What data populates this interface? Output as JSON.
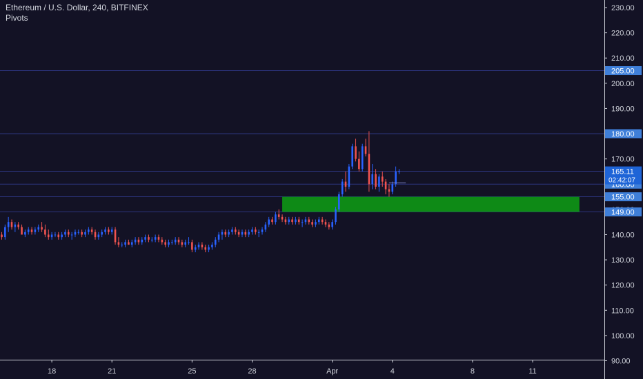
{
  "header": {
    "symbol_line": "Ethereum / U.S. Dollar, 240, BITFINEX",
    "indicator": "Pivots"
  },
  "colors": {
    "background": "#131225",
    "up": "#2962ff",
    "down": "#ef5350",
    "zone": "#0e8a16",
    "hline": "#2d3580",
    "price_tag": "#1e64d7",
    "level_tag": "#3f7fd9"
  },
  "chart_data": {
    "type": "candlestick",
    "symbol": "Ethereum / U.S. Dollar",
    "interval": "240",
    "exchange": "BITFINEX",
    "y_ticks": [
      90,
      100,
      110,
      120,
      130,
      140,
      150,
      160,
      170,
      180,
      190,
      200,
      210,
      220,
      230
    ],
    "y_tick_labels": [
      "90.00",
      "100.00",
      "110.00",
      "120.00",
      "130.00",
      "140.00",
      "150.00",
      "160.00",
      "170.00",
      "180.00",
      "190.00",
      "200.00",
      "210.00",
      "220.00",
      "230.00"
    ],
    "ylim": [
      87,
      233
    ],
    "x_ticks": [
      {
        "label": "18",
        "index": 15
      },
      {
        "label": "21",
        "index": 33
      },
      {
        "label": "25",
        "index": 57
      },
      {
        "label": "28",
        "index": 75
      },
      {
        "label": "Apr",
        "index": 99
      },
      {
        "label": "4",
        "index": 117
      },
      {
        "label": "8",
        "index": 141
      },
      {
        "label": "11",
        "index": 159
      }
    ],
    "horizontal_levels": [
      {
        "value": 205,
        "label": "205.00"
      },
      {
        "value": 180,
        "label": "180.00"
      },
      {
        "value": 165.11,
        "label": "165.11"
      },
      {
        "value": 160,
        "label": "160.00"
      },
      {
        "value": 155,
        "label": "155.00"
      },
      {
        "value": 149,
        "label": "149.00"
      }
    ],
    "current_price": {
      "value": 165.11,
      "label": "165.11",
      "countdown": "02:42:07"
    },
    "support_zone": {
      "from_index": 84,
      "to_index": 173,
      "low": 149,
      "high": 155
    },
    "candles": [
      [
        140,
        141,
        138,
        139
      ],
      [
        139,
        144,
        138,
        143
      ],
      [
        143,
        147,
        141,
        145
      ],
      [
        145,
        146,
        142,
        143
      ],
      [
        143,
        145,
        141,
        144
      ],
      [
        144,
        145,
        142,
        143
      ],
      [
        143,
        144,
        140,
        140
      ],
      [
        140,
        142,
        139,
        141
      ],
      [
        141,
        143,
        140,
        142
      ],
      [
        142,
        143,
        140,
        141
      ],
      [
        141,
        143,
        140,
        142
      ],
      [
        142,
        144,
        141,
        143
      ],
      [
        143,
        145,
        141,
        142
      ],
      [
        142,
        144,
        139,
        140
      ],
      [
        140,
        142,
        138,
        139
      ],
      [
        139,
        141,
        138,
        140
      ],
      [
        140,
        141,
        139,
        140
      ],
      [
        140,
        141,
        138,
        139
      ],
      [
        139,
        141,
        138,
        140
      ],
      [
        140,
        142,
        139,
        141
      ],
      [
        141,
        142,
        139,
        140
      ],
      [
        140,
        141,
        138,
        140
      ],
      [
        140,
        142,
        139,
        141
      ],
      [
        141,
        142,
        140,
        141
      ],
      [
        141,
        142,
        139,
        140
      ],
      [
        140,
        142,
        139,
        141
      ],
      [
        141,
        143,
        140,
        142
      ],
      [
        142,
        143,
        140,
        141
      ],
      [
        141,
        142,
        138,
        139
      ],
      [
        139,
        141,
        138,
        140
      ],
      [
        140,
        142,
        139,
        141
      ],
      [
        141,
        143,
        140,
        142
      ],
      [
        142,
        143,
        140,
        141
      ],
      [
        141,
        143,
        140,
        142
      ],
      [
        142,
        143,
        136,
        137
      ],
      [
        137,
        139,
        135,
        136
      ],
      [
        136,
        137,
        135,
        136
      ],
      [
        136,
        138,
        135,
        137
      ],
      [
        137,
        138,
        136,
        136
      ],
      [
        136,
        138,
        135,
        137
      ],
      [
        137,
        139,
        136,
        138
      ],
      [
        138,
        139,
        136,
        137
      ],
      [
        137,
        139,
        136,
        138
      ],
      [
        138,
        140,
        137,
        139
      ],
      [
        139,
        140,
        137,
        138
      ],
      [
        138,
        139,
        137,
        138
      ],
      [
        138,
        140,
        137,
        139
      ],
      [
        139,
        140,
        137,
        138
      ],
      [
        138,
        139,
        136,
        137
      ],
      [
        137,
        138,
        135,
        136
      ],
      [
        136,
        138,
        135,
        137
      ],
      [
        137,
        138,
        136,
        137
      ],
      [
        137,
        139,
        136,
        138
      ],
      [
        138,
        139,
        136,
        137
      ],
      [
        137,
        138,
        135,
        136
      ],
      [
        136,
        138,
        135,
        137
      ],
      [
        137,
        139,
        136,
        137
      ],
      [
        137,
        138,
        133,
        134
      ],
      [
        134,
        136,
        133,
        135
      ],
      [
        135,
        137,
        134,
        136
      ],
      [
        136,
        137,
        134,
        135
      ],
      [
        135,
        136,
        133,
        134
      ],
      [
        134,
        136,
        133,
        135
      ],
      [
        135,
        137,
        134,
        136
      ],
      [
        136,
        139,
        135,
        138
      ],
      [
        138,
        141,
        137,
        140
      ],
      [
        140,
        142,
        138,
        141
      ],
      [
        141,
        142,
        139,
        140
      ],
      [
        140,
        142,
        139,
        141
      ],
      [
        141,
        143,
        140,
        142
      ],
      [
        142,
        143,
        140,
        141
      ],
      [
        141,
        142,
        139,
        140
      ],
      [
        140,
        142,
        139,
        141
      ],
      [
        141,
        142,
        139,
        140
      ],
      [
        140,
        142,
        139,
        141
      ],
      [
        141,
        143,
        140,
        142
      ],
      [
        142,
        143,
        140,
        141
      ],
      [
        141,
        142,
        139,
        141
      ],
      [
        141,
        143,
        140,
        142
      ],
      [
        142,
        145,
        141,
        144
      ],
      [
        144,
        147,
        143,
        146
      ],
      [
        146,
        147,
        144,
        145
      ],
      [
        145,
        149,
        144,
        148
      ],
      [
        148,
        150,
        146,
        147
      ],
      [
        147,
        148,
        145,
        146
      ],
      [
        146,
        147,
        144,
        145
      ],
      [
        145,
        147,
        144,
        146
      ],
      [
        146,
        147,
        144,
        145
      ],
      [
        145,
        147,
        144,
        146
      ],
      [
        146,
        147,
        144,
        145
      ],
      [
        145,
        146,
        143,
        145
      ],
      [
        145,
        147,
        144,
        146
      ],
      [
        146,
        147,
        144,
        145
      ],
      [
        145,
        146,
        143,
        144
      ],
      [
        144,
        146,
        143,
        145
      ],
      [
        145,
        147,
        144,
        146
      ],
      [
        146,
        147,
        144,
        145
      ],
      [
        145,
        146,
        143,
        144
      ],
      [
        144,
        145,
        142,
        143
      ],
      [
        143,
        146,
        142,
        145
      ],
      [
        145,
        151,
        144,
        150
      ],
      [
        150,
        157,
        149,
        156
      ],
      [
        156,
        162,
        155,
        161
      ],
      [
        161,
        165,
        157,
        159
      ],
      [
        159,
        168,
        158,
        167
      ],
      [
        167,
        176,
        166,
        175
      ],
      [
        175,
        178,
        169,
        170
      ],
      [
        170,
        173,
        165,
        166
      ],
      [
        166,
        176,
        165,
        175
      ],
      [
        175,
        178,
        171,
        172
      ],
      [
        172,
        181,
        157,
        160
      ],
      [
        160,
        168,
        158,
        164
      ],
      [
        164,
        166,
        158,
        159
      ],
      [
        159,
        164,
        157,
        163
      ],
      [
        163,
        165,
        159,
        161
      ],
      [
        161,
        162,
        156,
        158
      ],
      [
        158,
        160,
        155,
        157
      ],
      [
        157,
        161,
        156,
        160
      ],
      [
        160,
        167,
        159,
        165
      ],
      [
        165,
        166,
        164,
        165.11
      ]
    ]
  }
}
